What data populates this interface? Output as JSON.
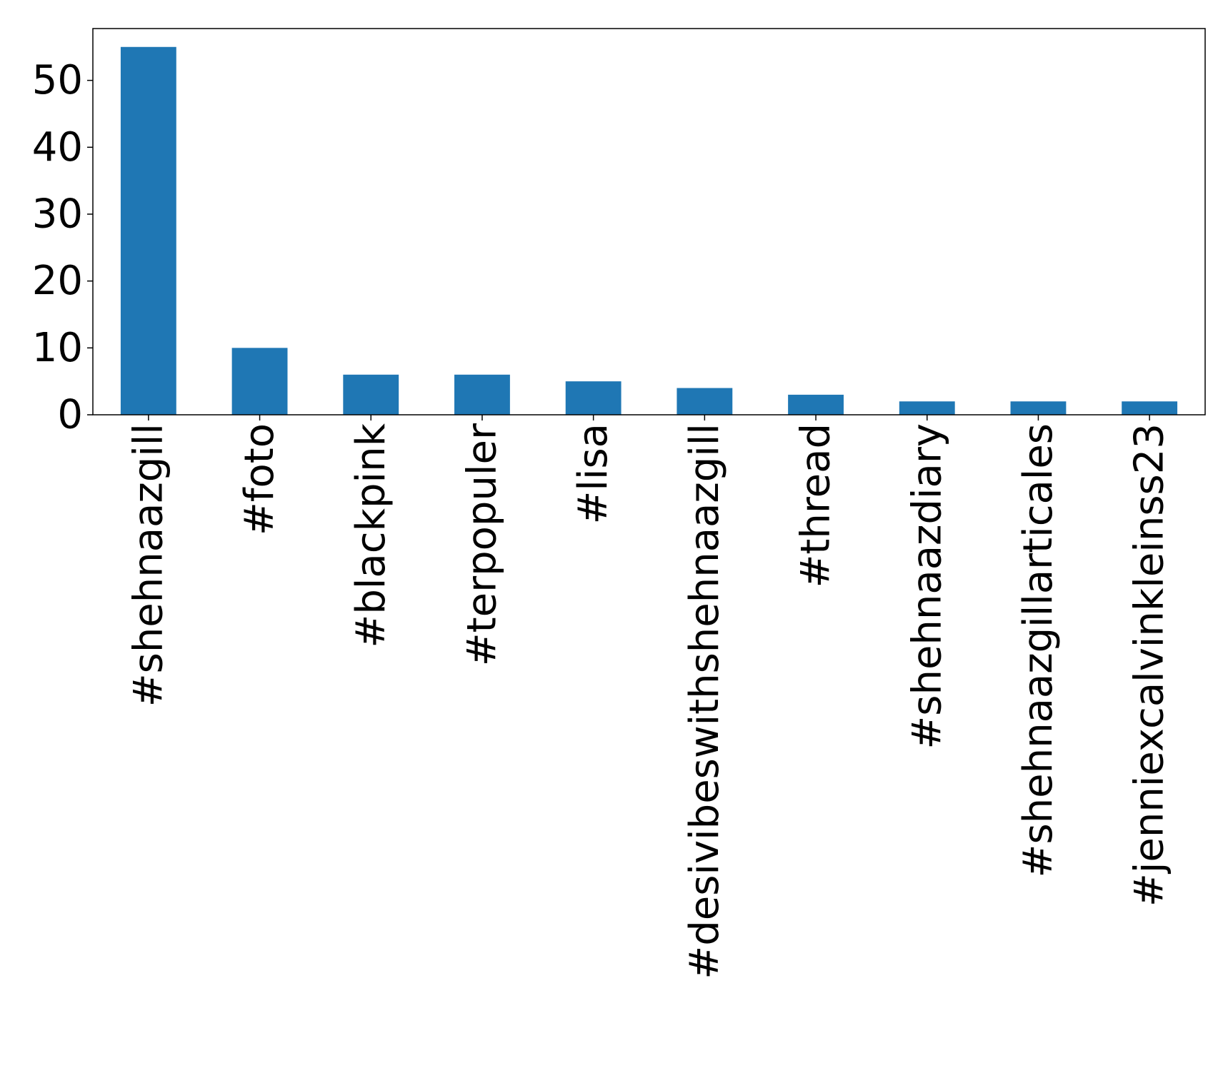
{
  "chart_data": {
    "type": "bar",
    "title": "",
    "xlabel": "",
    "ylabel": "",
    "categories": [
      "#shehnaazgill",
      "#foto",
      "#blackpink",
      "#terpopuler",
      "#lisa",
      "#desivibeswithshehnaazgill",
      "#thread",
      "#shehnaazdiary",
      "#shehnaazgillarticales",
      "#jenniexcalvinkleinss23"
    ],
    "values": [
      55,
      10,
      6,
      6,
      5,
      4,
      3,
      2,
      2,
      2
    ],
    "ylim": [
      0,
      57.75
    ],
    "yticks": [
      0,
      10,
      20,
      30,
      40,
      50
    ],
    "bar_color": "#1f77b4",
    "grid": false,
    "legend": "none"
  }
}
